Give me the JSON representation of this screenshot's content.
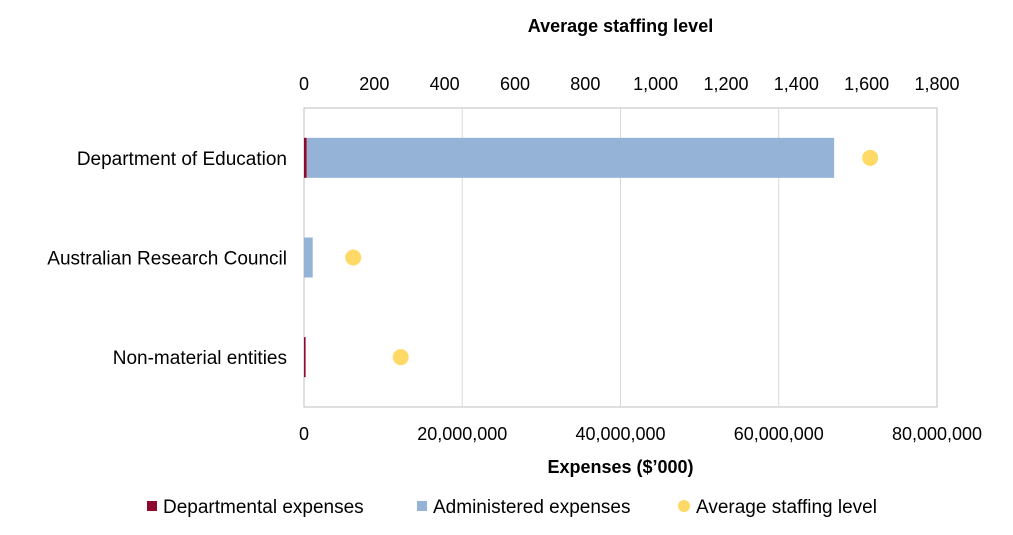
{
  "chart_data": {
    "type": "bar",
    "orientation": "horizontal",
    "stacked": true,
    "categories": [
      "Department of Education",
      "Australian Research Council",
      "Non-material entities"
    ],
    "series": [
      {
        "name": "Departmental expenses",
        "axis": "bottom",
        "values": [
          350000,
          0,
          150000
        ],
        "color": "#8B0A2E"
      },
      {
        "name": "Administered expenses",
        "axis": "bottom",
        "values": [
          66650000,
          1100000,
          0
        ],
        "color": "#95B3D7"
      }
    ],
    "scatter_series": {
      "name": "Average staffing level",
      "axis": "top",
      "values": [
        1610,
        140,
        275
      ],
      "color": "#FFD966"
    },
    "x_bottom": {
      "label": "Expenses ($’000)",
      "range": [
        0,
        80000000
      ],
      "ticks": [
        0,
        20000000,
        40000000,
        60000000,
        80000000
      ],
      "tick_labels": [
        "0",
        "20,000,000",
        "40,000,000",
        "60,000,000",
        "80,000,000"
      ]
    },
    "x_top": {
      "label": "Average staffing level",
      "range": [
        0,
        1800
      ],
      "ticks": [
        0,
        200,
        400,
        600,
        800,
        1000,
        1200,
        1400,
        1600,
        1800
      ],
      "tick_labels": [
        "0",
        "200",
        "400",
        "600",
        "800",
        "1,000",
        "1,200",
        "1,400",
        "1,600",
        "1,800"
      ]
    },
    "gridlines": true,
    "legend_position": "bottom"
  }
}
